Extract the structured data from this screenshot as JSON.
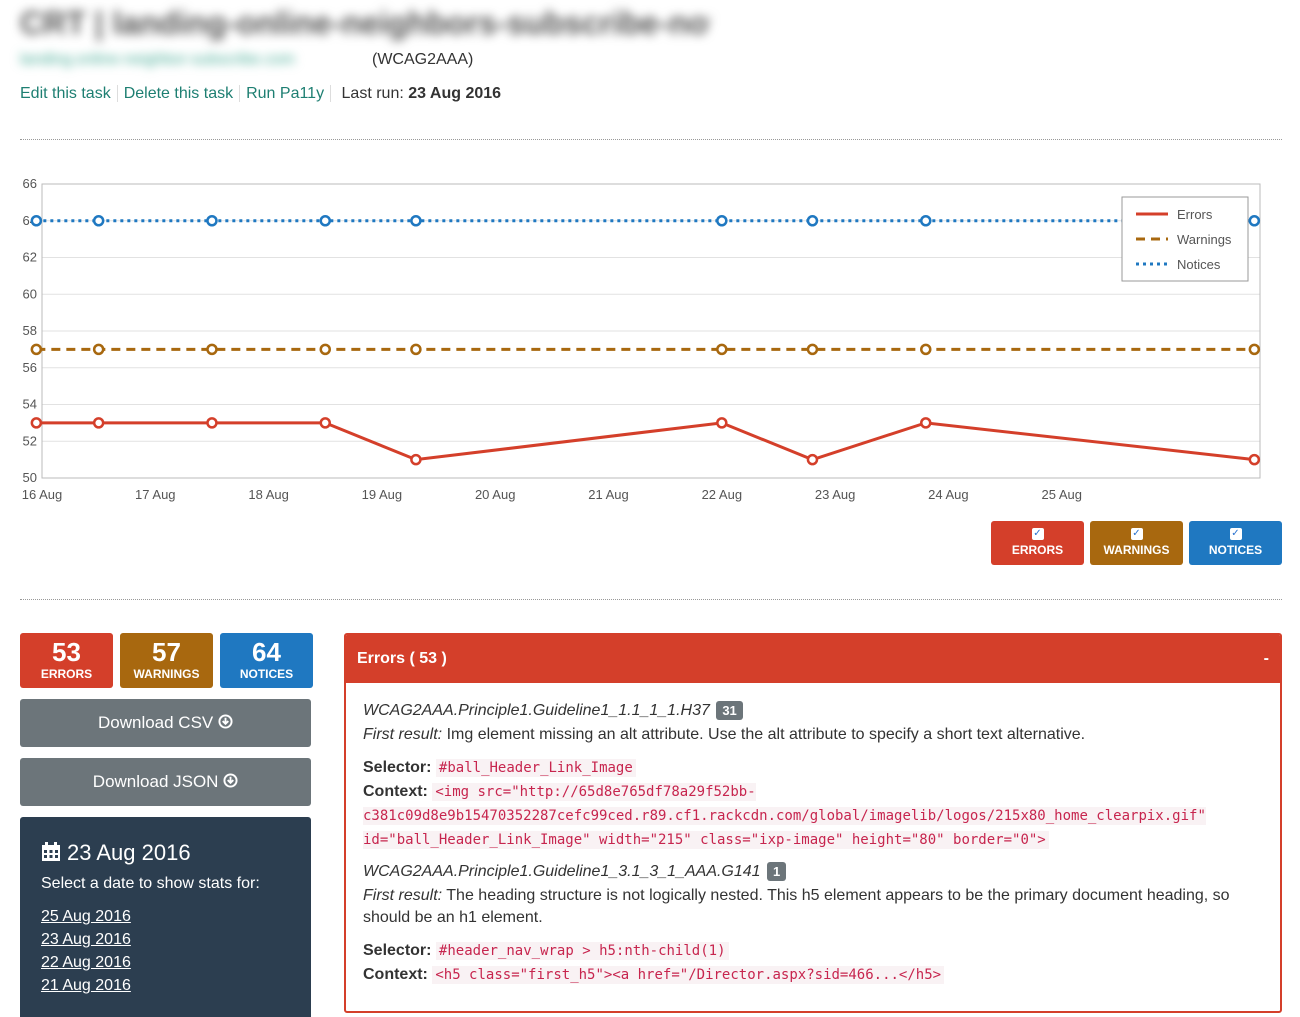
{
  "task": {
    "title": "CRT | landing-online-neighbors-subscribe-now",
    "url": "landing.online-neighbor-subscribe.com",
    "standard": "(WCAG2AAA)"
  },
  "actions": {
    "edit": "Edit this task",
    "delete": "Delete this task",
    "run": "Run Pa11y",
    "last_run_label": "Last run:",
    "last_run_value": "23 Aug 2016"
  },
  "chart_data": {
    "type": "line",
    "x_ticks": [
      "16 Aug",
      "17 Aug",
      "18 Aug",
      "19 Aug",
      "20 Aug",
      "21 Aug",
      "22 Aug",
      "23 Aug",
      "24 Aug",
      "25 Aug"
    ],
    "x_domain": [
      16.0,
      26.75
    ],
    "ylim": [
      50,
      66
    ],
    "y_ticks": [
      50,
      52,
      54,
      56,
      58,
      60,
      62,
      64,
      66
    ],
    "grid": true,
    "legend": "top-right",
    "series": [
      {
        "name": "Errors",
        "color": "#d43f2a",
        "dash": "solid",
        "x": [
          15.95,
          16.5,
          17.5,
          18.5,
          19.3,
          22.0,
          22.8,
          23.8,
          26.7
        ],
        "y": [
          53,
          53,
          53,
          53,
          51,
          53,
          51,
          53,
          51
        ]
      },
      {
        "name": "Warnings",
        "color": "#a8680f",
        "dash": "dashed",
        "x": [
          15.95,
          16.5,
          17.5,
          18.5,
          19.3,
          22.0,
          22.8,
          23.8,
          26.7
        ],
        "y": [
          57,
          57,
          57,
          57,
          57,
          57,
          57,
          57,
          57
        ]
      },
      {
        "name": "Notices",
        "color": "#1f78c1",
        "dash": "dotted",
        "x": [
          15.95,
          16.5,
          17.5,
          18.5,
          19.3,
          22.0,
          22.8,
          23.8,
          26.7
        ],
        "y": [
          64,
          64,
          64,
          64,
          64,
          64,
          64,
          64,
          64
        ]
      }
    ]
  },
  "toggles": [
    {
      "label": "ERRORS",
      "check": "✓"
    },
    {
      "label": "WARNINGS",
      "check": "✓"
    },
    {
      "label": "NOTICES",
      "check": "✓"
    }
  ],
  "counts": {
    "errors": {
      "value": "53",
      "label": "ERRORS"
    },
    "warnings": {
      "value": "57",
      "label": "WARNINGS"
    },
    "notices": {
      "value": "64",
      "label": "NOTICES"
    }
  },
  "downloads": {
    "csv": "Download CSV",
    "json": "Download JSON",
    "icon": "download-circle-icon"
  },
  "dates": {
    "selected": "23 Aug 2016",
    "prompt": "Select a date to show stats for:",
    "items": [
      "25 Aug 2016",
      "23 Aug 2016",
      "22 Aug 2016",
      "21 Aug 2016"
    ]
  },
  "errors_panel": {
    "title": "Errors ( 53 )",
    "collapse": "-",
    "results": [
      {
        "code": "WCAG2AAA.Principle1.Guideline1_1.1_1_1.H37",
        "count": "31",
        "first_label": "First result:",
        "first_text": "Img element missing an alt attribute. Use the alt attribute to specify a short text alternative.",
        "selector_label": "Selector:",
        "selector": "#ball_Header_Link_Image",
        "context_label": "Context:",
        "context": "<img src=\"http://65d8e765df78a29f52bb-c381c09d8e9b15470352287cefc99ced.r89.cf1.rackcdn.com/global/imagelib/logos/215x80_home_clearpix.gif\" id=\"ball_Header_Link_Image\" width=\"215\" class=\"ixp-image\" height=\"80\" border=\"0\">"
      },
      {
        "code": "WCAG2AAA.Principle1.Guideline1_3.1_3_1_AAA.G141",
        "count": "1",
        "first_label": "First result:",
        "first_text": "The heading structure is not logically nested. This h5 element appears to be the primary document heading, so should be an h1 element.",
        "selector_label": "Selector:",
        "selector": "#header_nav_wrap > h5:nth-child(1)",
        "context_label": "Context:",
        "context": "<h5 class=\"first_h5\"><a href=\"/Director.aspx?sid=466...</h5>"
      }
    ]
  }
}
